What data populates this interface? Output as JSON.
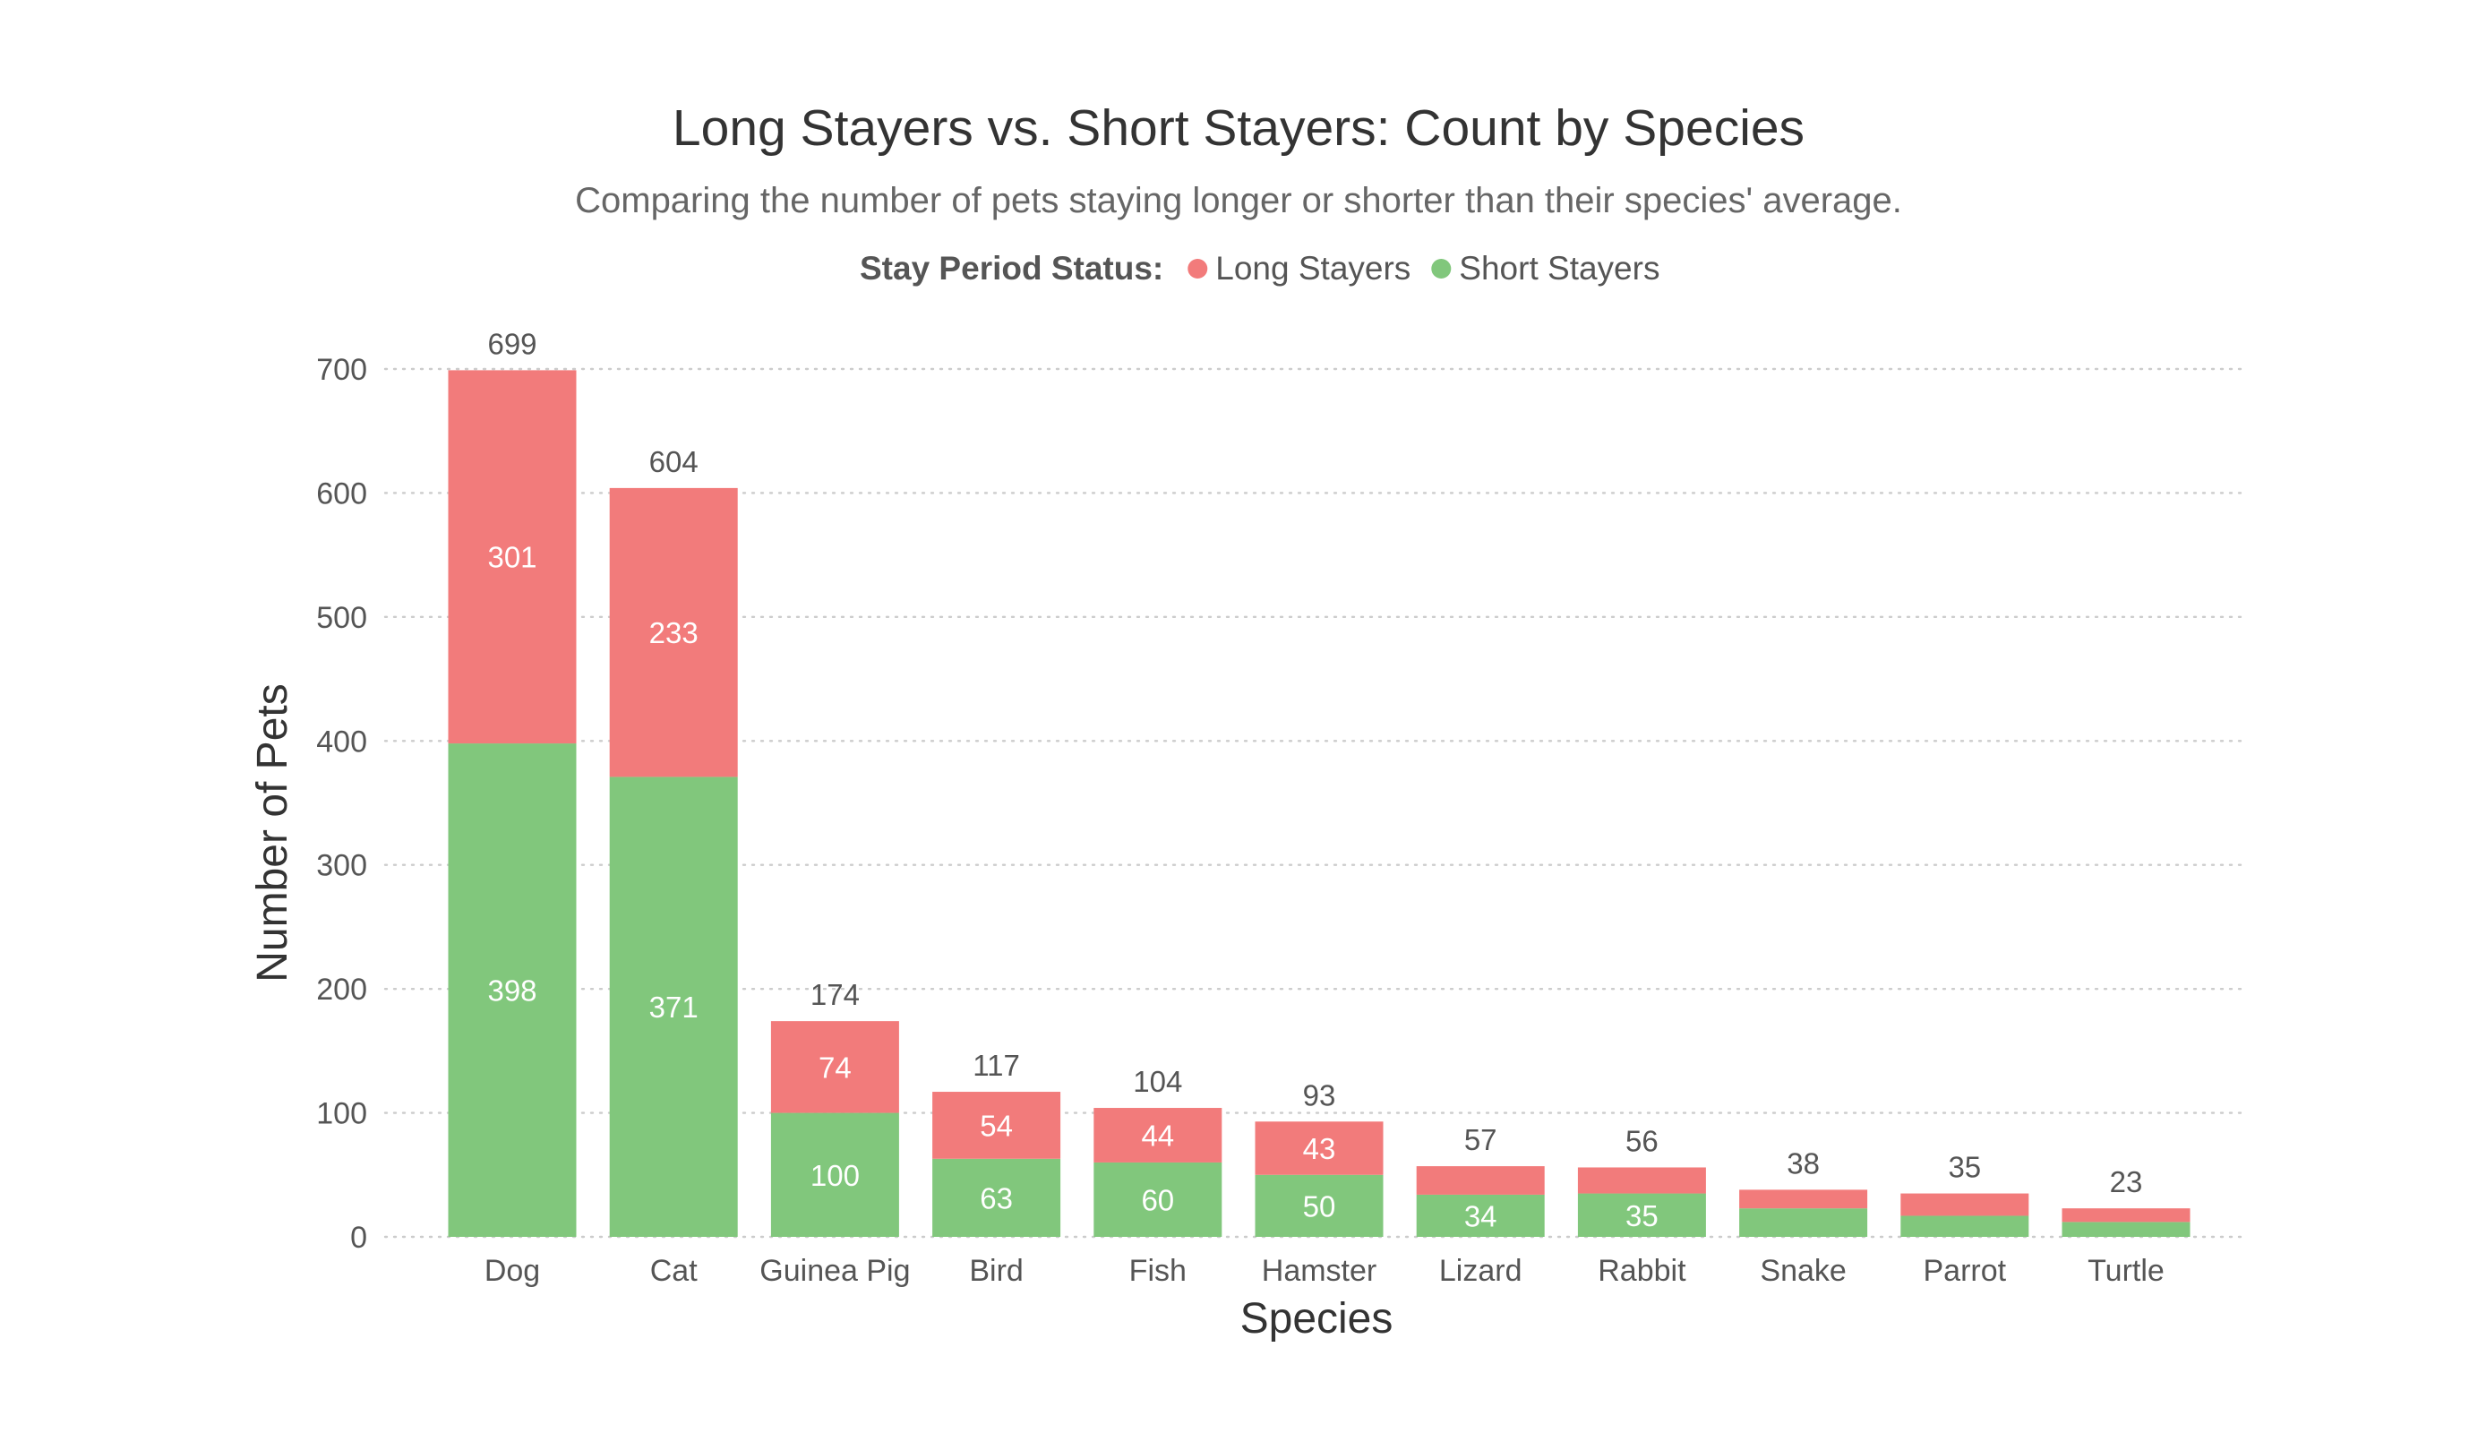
{
  "chart_data": {
    "type": "bar",
    "stacked": true,
    "title": "Long Stayers vs. Short Stayers: Count by Species",
    "subtitle": "Comparing the number of pets staying longer or shorter than their species' average.",
    "legend": {
      "title": "Stay Period Status:",
      "position": "top"
    },
    "xlabel": "Species",
    "ylabel": "Number of Pets",
    "ylim": [
      0,
      700
    ],
    "yticks": [
      0,
      100,
      200,
      300,
      400,
      500,
      600,
      700
    ],
    "grid": true,
    "categories": [
      "Dog",
      "Cat",
      "Guinea Pig",
      "Bird",
      "Fish",
      "Hamster",
      "Lizard",
      "Rabbit",
      "Snake",
      "Parrot",
      "Turtle"
    ],
    "series": [
      {
        "name": "Short Stayers",
        "color": "#81c77c",
        "values": [
          398,
          371,
          100,
          63,
          60,
          50,
          34,
          35,
          23,
          17,
          12
        ]
      },
      {
        "name": "Long Stayers",
        "color": "#f27b7b",
        "values": [
          301,
          233,
          74,
          54,
          44,
          43,
          23,
          21,
          15,
          18,
          11
        ]
      }
    ],
    "totals": [
      699,
      604,
      174,
      117,
      104,
      93,
      57,
      56,
      38,
      35,
      23
    ],
    "visible_segment_labels": {
      "Short Stayers": [
        398,
        371,
        100,
        63,
        60,
        50,
        34,
        35,
        null,
        null,
        null
      ],
      "Long Stayers": [
        301,
        233,
        74,
        54,
        44,
        43,
        null,
        null,
        null,
        null,
        null
      ]
    }
  }
}
